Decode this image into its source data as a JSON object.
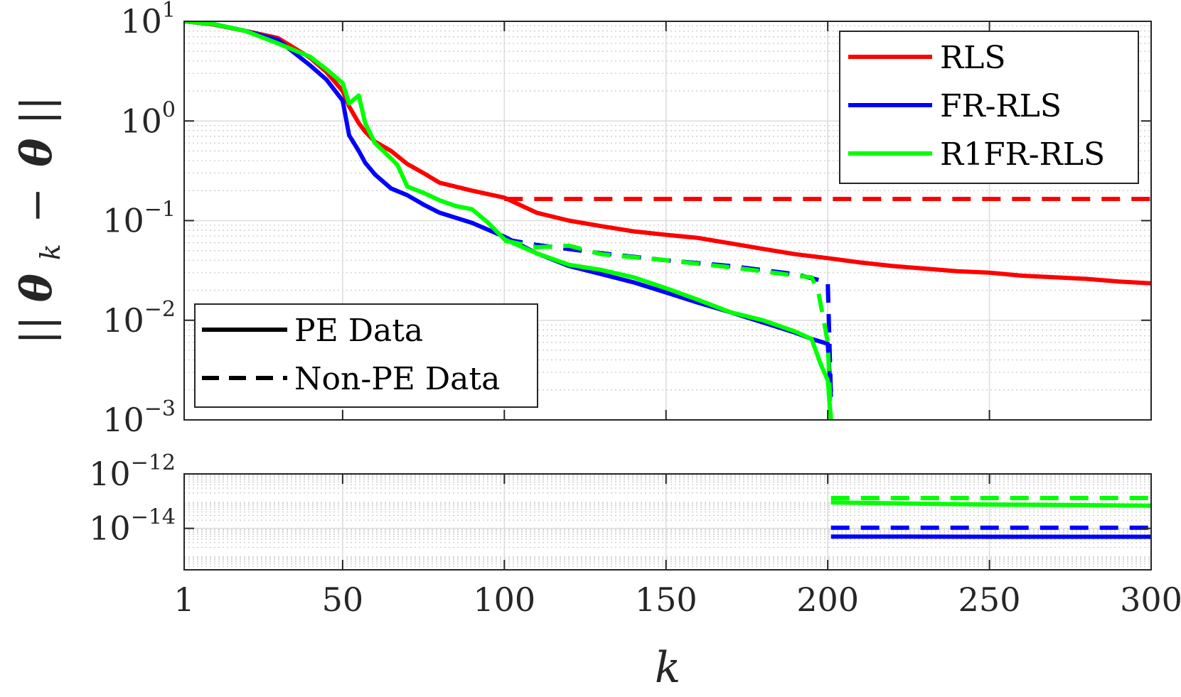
{
  "chart_data": [
    {
      "type": "line",
      "panel": "top",
      "yscale": "log",
      "xlim": [
        1,
        300
      ],
      "ylim": [
        0.001,
        10
      ],
      "ylabel": "||θ_k − θ||",
      "ylabel_parts": {
        "open": "||",
        "theta": "θ",
        "sub": "k",
        "minus": "−",
        "theta2": "θ",
        "close": "||"
      },
      "x_ticks": [
        1,
        50,
        100,
        150,
        200,
        250,
        300
      ],
      "y_ticks": [
        {
          "value": 10,
          "base": "10",
          "exp": "1"
        },
        {
          "value": 1,
          "base": "10",
          "exp": "0"
        },
        {
          "value": 0.1,
          "base": "10",
          "exp": "−1"
        },
        {
          "value": 0.01,
          "base": "10",
          "exp": "−2"
        },
        {
          "value": 0.001,
          "base": "10",
          "exp": "−3"
        }
      ],
      "grid": true,
      "series": [
        {
          "name": "RLS",
          "data": "PE Data",
          "style": "solid",
          "color": "#ff0000",
          "x": [
            1,
            10,
            20,
            30,
            40,
            45,
            50,
            52,
            55,
            57,
            60,
            65,
            70,
            75,
            80,
            90,
            100,
            110,
            120,
            130,
            140,
            150,
            160,
            170,
            180,
            190,
            200,
            210,
            220,
            230,
            240,
            250,
            260,
            270,
            280,
            290,
            300
          ],
          "y": [
            10,
            9.3,
            8.0,
            6.8,
            4.3,
            3.1,
            2.0,
            1.4,
            0.95,
            0.78,
            0.62,
            0.5,
            0.37,
            0.3,
            0.24,
            0.2,
            0.17,
            0.12,
            0.1,
            0.088,
            0.078,
            0.072,
            0.067,
            0.059,
            0.052,
            0.046,
            0.042,
            0.038,
            0.035,
            0.033,
            0.031,
            0.03,
            0.028,
            0.027,
            0.026,
            0.0245,
            0.0235
          ]
        },
        {
          "name": "RLS",
          "data": "Non-PE Data",
          "style": "dashed",
          "color": "#ff0000",
          "x": [
            100,
            150,
            200,
            250,
            300
          ],
          "y": [
            0.165,
            0.165,
            0.165,
            0.165,
            0.165
          ]
        },
        {
          "name": "FR-RLS",
          "data": "PE Data",
          "style": "solid",
          "color": "#0000ff",
          "x": [
            1,
            10,
            20,
            30,
            40,
            45,
            50,
            52,
            55,
            57,
            60,
            65,
            70,
            75,
            80,
            90,
            100,
            110,
            120,
            130,
            140,
            150,
            160,
            170,
            180,
            190,
            195,
            200,
            201
          ],
          "y": [
            10,
            9.4,
            8.0,
            6.5,
            3.6,
            2.6,
            1.6,
            0.72,
            0.5,
            0.38,
            0.29,
            0.21,
            0.18,
            0.145,
            0.12,
            0.095,
            0.069,
            0.047,
            0.035,
            0.029,
            0.024,
            0.019,
            0.015,
            0.012,
            0.0095,
            0.0075,
            0.0065,
            0.0058,
            0.0017
          ]
        },
        {
          "name": "FR-RLS",
          "data": "Non-PE Data",
          "style": "dashed",
          "color": "#0000ff",
          "x": [
            100,
            110,
            130,
            150,
            170,
            190,
            198,
            200,
            201
          ],
          "y": [
            0.065,
            0.057,
            0.047,
            0.04,
            0.035,
            0.029,
            0.025,
            0.024,
            0.0017
          ]
        },
        {
          "name": "R1FR-RLS",
          "data": "PE Data",
          "style": "solid",
          "color": "#00ff00",
          "x": [
            1,
            10,
            20,
            30,
            40,
            45,
            50,
            52,
            55,
            57,
            60,
            65,
            67,
            70,
            75,
            80,
            85,
            90,
            95,
            100,
            110,
            120,
            130,
            140,
            150,
            160,
            170,
            180,
            190,
            195,
            198,
            200,
            201
          ],
          "y": [
            10,
            9.4,
            8.0,
            6.0,
            4.4,
            3.3,
            2.4,
            1.5,
            1.8,
            0.95,
            0.6,
            0.42,
            0.36,
            0.22,
            0.19,
            0.16,
            0.14,
            0.13,
            0.095,
            0.065,
            0.047,
            0.036,
            0.032,
            0.027,
            0.021,
            0.016,
            0.012,
            0.01,
            0.0077,
            0.0065,
            0.0035,
            0.0025,
            0.001
          ]
        },
        {
          "name": "R1FR-RLS",
          "data": "Non-PE Data",
          "style": "dashed",
          "color": "#00ff00",
          "x": [
            100,
            110,
            120,
            130,
            150,
            170,
            180,
            190,
            195,
            197,
            199,
            200,
            201
          ],
          "y": [
            0.063,
            0.054,
            0.056,
            0.046,
            0.04,
            0.034,
            0.031,
            0.028,
            0.027,
            0.02,
            0.009,
            0.006,
            0.001
          ]
        }
      ],
      "legend": {
        "entries": [
          "RLS",
          "FR-RLS",
          "R1FR-RLS"
        ],
        "placement": "top-right"
      },
      "style_legend": {
        "entries": [
          "PE Data",
          "Non-PE Data"
        ],
        "placement": "bottom-left"
      }
    },
    {
      "type": "line",
      "panel": "bottom",
      "yscale": "log",
      "xlim": [
        1,
        300
      ],
      "ylim": [
        3e-16,
        1e-12
      ],
      "xlabel": "k",
      "x_ticks": [
        1,
        50,
        100,
        150,
        200,
        250,
        300
      ],
      "y_ticks": [
        {
          "value": 1e-12,
          "base": "10",
          "exp": "−12"
        },
        {
          "value": 1e-14,
          "base": "10",
          "exp": "−14"
        }
      ],
      "grid": true,
      "series": [
        {
          "name": "FR-RLS",
          "data": "PE Data",
          "style": "solid",
          "color": "#0000ff",
          "x": [
            201,
            210,
            250,
            300
          ],
          "y": [
            5e-15,
            5e-15,
            4.9e-15,
            4.9e-15
          ]
        },
        {
          "name": "FR-RLS",
          "data": "Non-PE Data",
          "style": "dashed",
          "color": "#0000ff",
          "x": [
            201,
            250,
            300
          ],
          "y": [
            1.05e-14,
            1.05e-14,
            1.05e-14
          ]
        },
        {
          "name": "R1FR-RLS",
          "data": "PE Data",
          "style": "solid",
          "color": "#00ff00",
          "x": [
            201,
            210,
            250,
            300
          ],
          "y": [
            9e-14,
            8.6e-14,
            7.5e-14,
            6.8e-14
          ]
        },
        {
          "name": "R1FR-RLS",
          "data": "Non-PE Data",
          "style": "dashed",
          "color": "#00ff00",
          "x": [
            201,
            250,
            300
          ],
          "y": [
            1.3e-13,
            1.3e-13,
            1.3e-13
          ]
        }
      ]
    }
  ]
}
